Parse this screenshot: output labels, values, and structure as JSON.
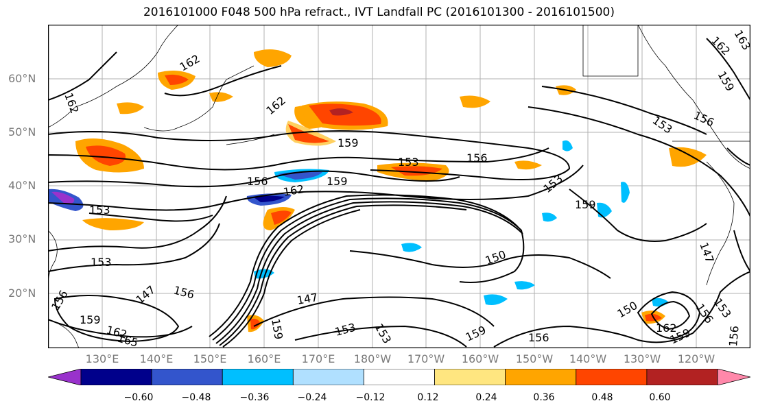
{
  "title": "2016101000 F048 500 hPa refract., IVT Landfall PC (2016101300 - 2016101500)",
  "lat_labels": [
    "60°N",
    "50°N",
    "40°N",
    "30°N",
    "20°N"
  ],
  "lon_labels": [
    "130°E",
    "140°E",
    "150°E",
    "160°E",
    "170°E",
    "180°W",
    "170°W",
    "160°W",
    "150°W",
    "140°W",
    "130°W",
    "120°W"
  ],
  "contour_labels": [
    "162",
    "162",
    "162",
    "159",
    "153",
    "156",
    "156",
    "156",
    "159",
    "162",
    "153",
    "153",
    "159",
    "153",
    "153",
    "147",
    "150",
    "156",
    "159",
    "162",
    "165",
    "147",
    "156",
    "159",
    "153",
    "153",
    "159",
    "156",
    "150",
    "162",
    "159",
    "156",
    "153",
    "147",
    "156",
    "162",
    "159",
    "163"
  ],
  "colorbar": {
    "ticks": [
      "−0.60",
      "−0.48",
      "−0.36",
      "−0.24",
      "−0.12",
      "0.12",
      "0.24",
      "0.36",
      "0.48",
      "0.60"
    ],
    "colors": [
      "#9932cc",
      "#00008b",
      "#3355cc",
      "#00bfff",
      "#b0e0ff",
      "#ffffff",
      "#ffe680",
      "#ffa500",
      "#ff4500",
      "#b22222",
      "#ff88aa"
    ]
  }
}
